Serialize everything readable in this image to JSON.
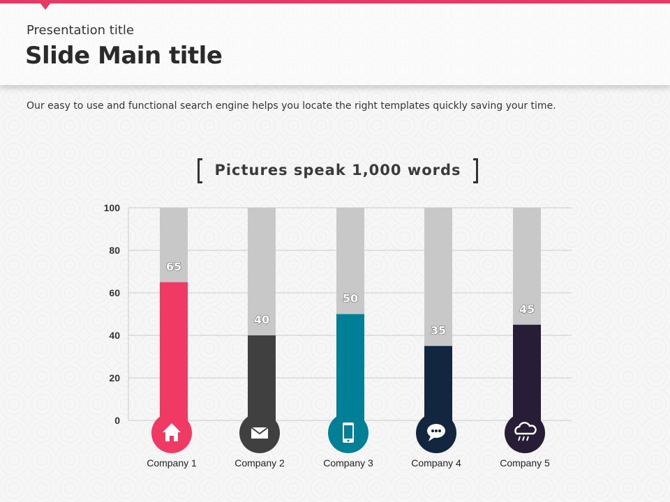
{
  "header": {
    "presentation_title": "Presentation title",
    "main_title": "Slide Main title"
  },
  "subtitle": "Our easy to use and functional  search engine helps you locate the right templates quickly  saving your time.",
  "section_title": "Pictures speak 1,000 words",
  "colors": {
    "accent": "#e63a64",
    "track": "#c8c8c8",
    "series": [
      "#f13a63",
      "#404040",
      "#008096",
      "#12263f",
      "#271d36"
    ]
  },
  "icons": [
    "home-icon",
    "envelope-icon",
    "phone-icon",
    "chat-icon",
    "cloud-rain-icon"
  ],
  "chart_data": {
    "type": "bar",
    "categories": [
      "Company 1",
      "Company 2",
      "Company 3",
      "Company 4",
      "Company 5"
    ],
    "values": [
      65,
      40,
      50,
      35,
      45
    ],
    "ylim": [
      0,
      100
    ],
    "yticks": [
      0,
      20,
      40,
      60,
      80,
      100
    ],
    "grid": true
  }
}
